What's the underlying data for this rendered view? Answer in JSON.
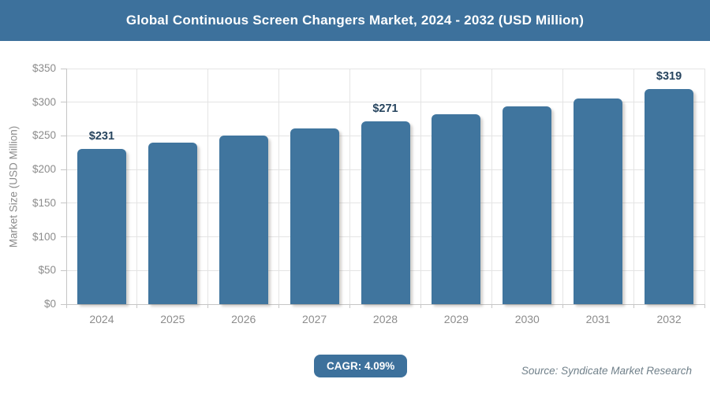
{
  "header": {
    "title": "Global Continuous Screen Changers Market, 2024 - 2032 (USD Million)"
  },
  "chart_data": {
    "type": "bar",
    "title": "Global Continuous Screen Changers Market, 2024 - 2032 (USD Million)",
    "categories": [
      "2024",
      "2025",
      "2026",
      "2027",
      "2028",
      "2029",
      "2030",
      "2031",
      "2032"
    ],
    "values": [
      231,
      240,
      250,
      261,
      271,
      282,
      294,
      306,
      319
    ],
    "data_labels": [
      "$231",
      "",
      "",
      "",
      "$271",
      "",
      "",
      "",
      "$319"
    ],
    "xlabel": "",
    "ylabel": "Market Size (USD Million)",
    "ylim": [
      0,
      350
    ],
    "ytick_step": 50,
    "yticks": [
      "$0",
      "$50",
      "$100",
      "$150",
      "$200",
      "$250",
      "$300",
      "$350"
    ],
    "grid": true,
    "legend": "none",
    "colors": {
      "bar": "#40759e",
      "header_bg": "#3d719c",
      "grid_line": "#e4e4e4",
      "axis_line": "#c6c6c6",
      "tick_label": "#8c8c8c",
      "data_label": "#27455f"
    }
  },
  "footer": {
    "cagr_label": "CAGR: 4.09%",
    "source": "Source: Syndicate Market Research"
  }
}
